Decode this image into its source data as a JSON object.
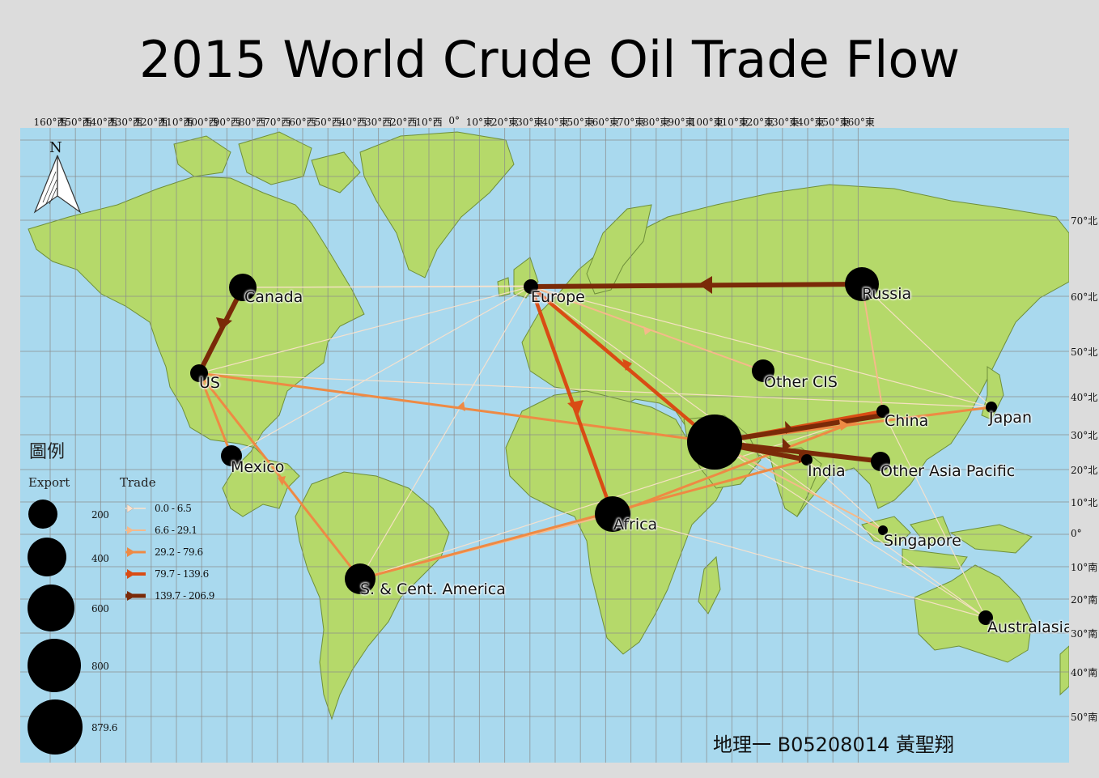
{
  "title": "2015 World Crude Oil Trade Flow",
  "longitude_labels": [
    "160°西",
    "150°西",
    "140°西",
    "130°西",
    "120°西",
    "110°西",
    "100°西",
    "90°西",
    "80°西",
    "70°西",
    "60°西",
    "50°西",
    "40°西",
    "30°西",
    "20°西",
    "10°西",
    "0°",
    "10°東",
    "20°東",
    "30°東",
    "40°東",
    "50°東",
    "60°東",
    "70°東",
    "80°東",
    "90°東",
    "100°東",
    "110°東",
    "120°東",
    "130°東",
    "140°東",
    "150°東",
    "160°東"
  ],
  "latitude_labels": [
    "70°北",
    "60°北",
    "50°北",
    "40°北",
    "30°北",
    "20°北",
    "10°北",
    "0°",
    "10°南",
    "20°南",
    "30°南",
    "40°南",
    "50°南"
  ],
  "north_arrow": "N",
  "regions": {
    "canada": "Canada",
    "us": "US",
    "mexico": "Mexico",
    "sca": "S. & Cent. America",
    "europe": "Europe",
    "russia": "Russia",
    "other_cis": "Other CIS",
    "africa": "Africa",
    "china": "China",
    "japan": "Japan",
    "india": "India",
    "other_asia_pacific": "Other Asia Pacific",
    "singapore": "Singapore",
    "australasia": "Australasia"
  },
  "legend": {
    "title": "圖例",
    "export_heading": "Export",
    "trade_heading": "Trade",
    "export_values": [
      "200",
      "400",
      "600",
      "800",
      "879.6"
    ],
    "trade_classes": [
      "0.0 - 6.5",
      "6.6 - 29.1",
      "29.2 - 79.6",
      "79.7 - 139.6",
      "139.7 - 206.9"
    ],
    "trade_colors": [
      "#fde2cc",
      "#f5b98a",
      "#ee8a44",
      "#d94c14",
      "#7a2a08"
    ]
  },
  "author": "地理一 B05208014 黃聖翔",
  "colors": {
    "ocean": "#a9d9ee",
    "land": "#b5d96a",
    "coast": "#6e8f3a",
    "grid": "#8a8a8a",
    "node": "#000000"
  }
}
